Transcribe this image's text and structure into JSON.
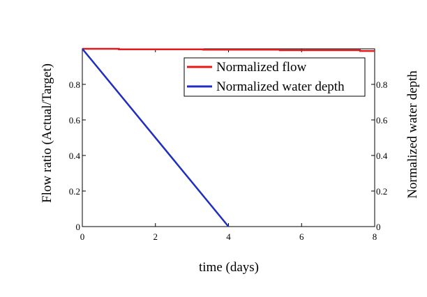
{
  "chart_data": {
    "type": "line",
    "xlabel": "time (days)",
    "ylabel_left": "Flow ratio (Actual/Target)",
    "ylabel_right": "Normalized water depth",
    "xlim": [
      0,
      8
    ],
    "ylim": [
      0,
      1
    ],
    "x_ticks": [
      0,
      2,
      4,
      6,
      8
    ],
    "x_tick_labels": [
      "0",
      "2",
      "4",
      "6",
      "8"
    ],
    "y_ticks": [
      0,
      0.2,
      0.4,
      0.6,
      0.8
    ],
    "y_tick_labels": [
      "0",
      "0.2",
      "0.4",
      "0.6",
      "0.8"
    ],
    "legend_position": "top-right",
    "series": [
      {
        "name": "Normalized flow",
        "color": "#e31a1c",
        "axis": "left",
        "x": [
          0,
          1,
          1.001,
          3.3,
          3.301,
          5.4,
          5.401,
          7.6,
          7.601,
          8
        ],
        "y": [
          1.0,
          1.0,
          0.997,
          0.997,
          0.995,
          0.995,
          0.992,
          0.992,
          0.988,
          0.988
        ]
      },
      {
        "name": "Normalized water depth",
        "color": "#1f2ec2",
        "axis": "right",
        "x": [
          0,
          4
        ],
        "y": [
          1.0,
          0.0
        ]
      }
    ]
  }
}
